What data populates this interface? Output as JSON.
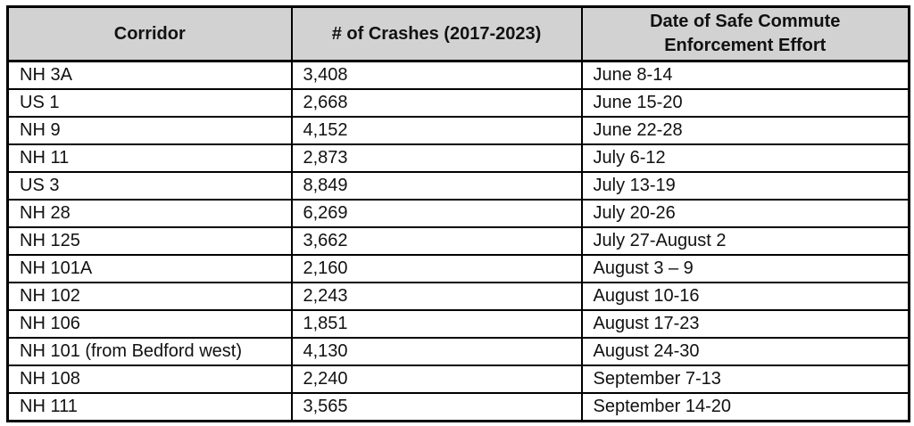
{
  "table": {
    "columns": [
      "Corridor",
      "# of Crashes (2017-2023)",
      "Date of Safe Commute Enforcement Effort"
    ],
    "rows": [
      {
        "corridor": "NH 3A",
        "crashes": "3,408",
        "date": "June 8-14"
      },
      {
        "corridor": "US 1",
        "crashes": "2,668",
        "date": "June 15-20"
      },
      {
        "corridor": "NH 9",
        "crashes": "4,152",
        "date": "June 22-28"
      },
      {
        "corridor": "NH 11",
        "crashes": "2,873",
        "date": "July 6-12"
      },
      {
        "corridor": "US 3",
        "crashes": "8,849",
        "date": "July 13-19"
      },
      {
        "corridor": "NH 28",
        "crashes": "6,269",
        "date": "July 20-26"
      },
      {
        "corridor": "NH 125",
        "crashes": "3,662",
        "date": "July 27-August 2"
      },
      {
        "corridor": "NH 101A",
        "crashes": "2,160",
        "date": "August 3 – 9"
      },
      {
        "corridor": "NH 102",
        "crashes": "2,243",
        "date": "August 10-16"
      },
      {
        "corridor": "NH 106",
        "crashes": "1,851",
        "date": "August 17-23"
      },
      {
        "corridor": "NH 101 (from Bedford west)",
        "crashes": "4,130",
        "date": "August 24-30"
      },
      {
        "corridor": "NH 108",
        "crashes": "2,240",
        "date": "September 7-13"
      },
      {
        "corridor": "NH 111",
        "crashes": "3,565",
        "date": "September 14-20"
      }
    ]
  },
  "colors": {
    "header_bg": "#d2d2d2",
    "border": "#000000",
    "text": "#111111"
  }
}
